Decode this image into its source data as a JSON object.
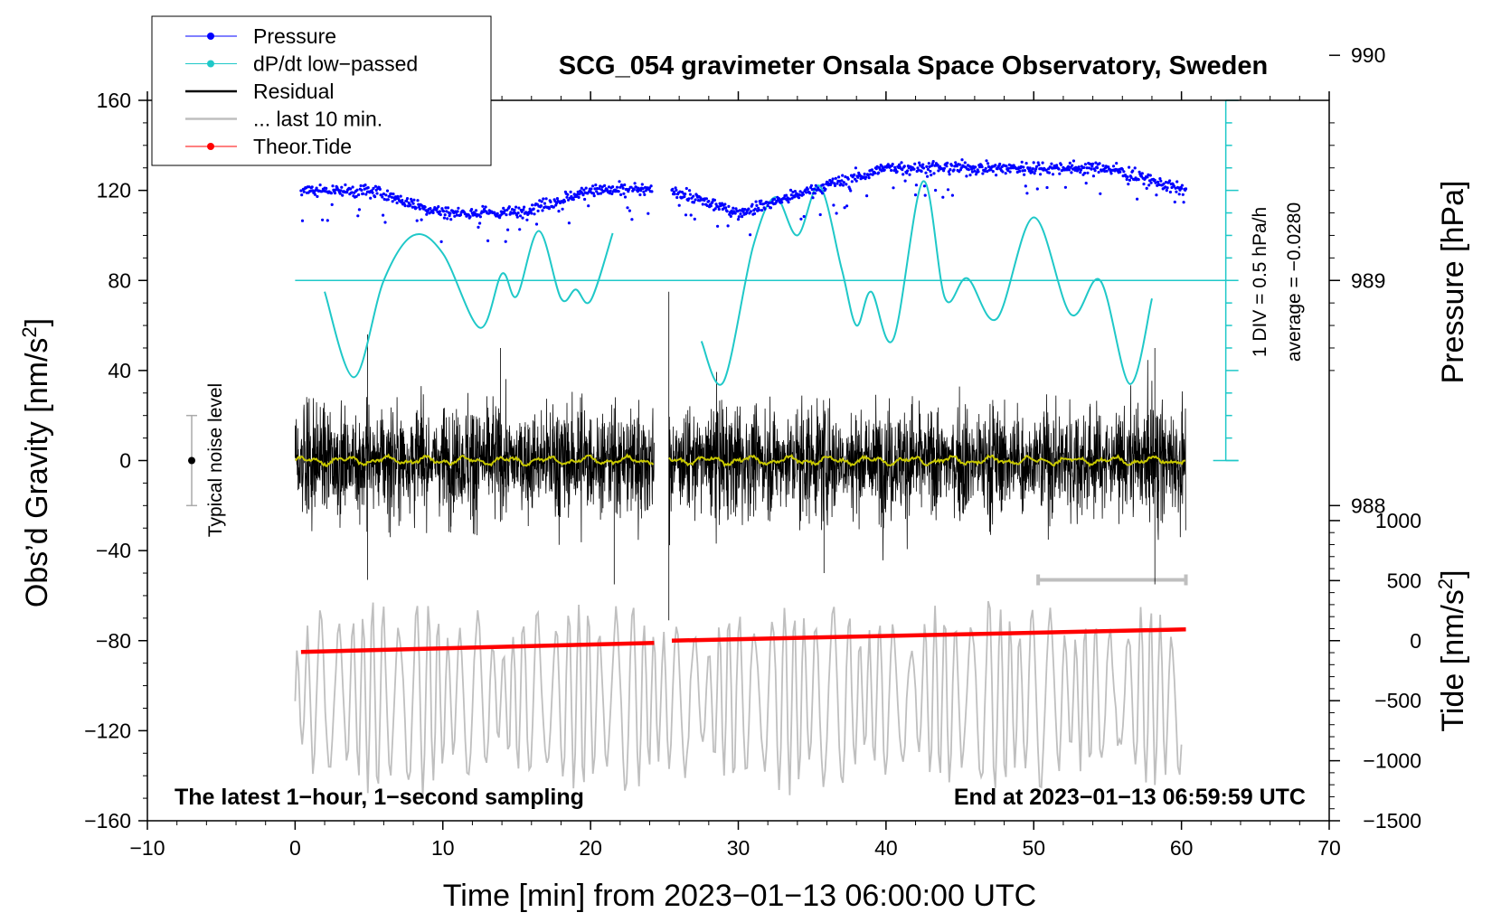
{
  "chart_data": {
    "type": "line",
    "title": "SCG_054 gravimeter Onsala Space Observatory, Sweden",
    "xlabel": "Time [min] from 2023−01−13 06:00:00 UTC",
    "ylabel_main": "Obs’d Gravity [nm/s",
    "ylabel_main_sup": "2",
    "ylabel_main_end": "]",
    "ylabel_pressure": "Pressure [hPa]",
    "ylabel_tide": "Tide [nm/s",
    "ylabel_tide_sup": "2",
    "ylabel_tide_end": "]",
    "xlim": [
      -10,
      70
    ],
    "ylim": [
      -160,
      160
    ],
    "xticks": [
      -10,
      0,
      10,
      20,
      30,
      40,
      50,
      60,
      70
    ],
    "xtick_labels": [
      "−10",
      "0",
      "10",
      "20",
      "30",
      "40",
      "50",
      "60",
      "70"
    ],
    "yticks": [
      160,
      120,
      80,
      40,
      0,
      -40,
      -80,
      -120,
      -160
    ],
    "ytick_labels": [
      "160",
      "120",
      "80",
      "40",
      "0",
      "−40",
      "−80",
      "−120",
      "−160"
    ],
    "pressure_ticks": [
      990,
      989,
      988
    ],
    "pressure_tick_labels": [
      "990",
      "989",
      "988"
    ],
    "tide_ticks": [
      1000,
      500,
      0,
      -500,
      -1000,
      -1500
    ],
    "tide_tick_labels": [
      "1000",
      "500",
      "0",
      "−500",
      "−1000",
      "−1500"
    ],
    "legend": [
      {
        "label": "Pressure",
        "color": "#0000ff",
        "marker": true
      },
      {
        "label": "dP/dt low−passed",
        "color": "#1fc8c8",
        "marker": true
      },
      {
        "label": "Residual",
        "color": "#000000",
        "marker": false
      },
      {
        "label": "... last 10 min.",
        "color": "#bfbfbf",
        "marker": false
      },
      {
        "label": "Theor.Tide",
        "color": "#ff0000",
        "marker": true
      }
    ],
    "noise_label": "Typical noise level",
    "noise_range": [
      -20,
      20
    ],
    "noise_x": -7,
    "dpdt_scale_label": "1 DIV = 0.5 hPa/h",
    "dpdt_average_label": "average = −0.0280",
    "dpdt_zero_level": 80,
    "footer_left": "The latest 1−hour, 1−second sampling",
    "footer_right": "End at 2023−01−13 06:59:59 UTC",
    "series": [
      {
        "name": "Pressure",
        "unit": "hPa",
        "x": [
          0.4,
          5,
          10,
          15,
          20,
          24.2,
          25.5,
          30,
          35,
          40,
          45,
          50,
          55,
          60.3
        ],
        "values": [
          989.4,
          989.4,
          989.3,
          989.3,
          989.4,
          989.4,
          989.4,
          989.3,
          989.4,
          989.5,
          989.5,
          989.5,
          989.5,
          989.4
        ]
      },
      {
        "name": "dP/dt low−passed",
        "unit": "y",
        "x": [
          2,
          4,
          6,
          8,
          10,
          12.5,
          14,
          15,
          16.5,
          18,
          19,
          20,
          21.5,
          27.5,
          29,
          31,
          32.5,
          34,
          35.5,
          37,
          38,
          39,
          40.5,
          42.5,
          44,
          45.5,
          47.5,
          50,
          52.5,
          54.5,
          56.5,
          58
        ],
        "values": [
          75,
          37,
          80,
          100,
          92,
          59,
          83,
          73,
          102,
          72,
          76,
          71,
          101,
          53,
          35,
          95,
          117,
          100,
          122,
          85,
          60,
          75,
          54,
          124,
          72,
          81,
          63,
          108,
          65,
          80,
          34,
          72
        ]
      },
      {
        "name": "Residual",
        "unit": "nm/s2",
        "x": [
          0,
          24.3,
          25.3,
          60.3
        ],
        "values": [
          0,
          0,
          0,
          0
        ],
        "envelope_max": [
          56,
          75
        ],
        "envelope_min": [
          -53,
          -71
        ]
      },
      {
        "name": "... last 10 min.",
        "unit": "nm/s2",
        "x": [
          0,
          60
        ],
        "values": [
          -105,
          -105
        ],
        "envelope_max": [
          -50,
          -50
        ],
        "envelope_min": [
          -158,
          -158
        ]
      },
      {
        "name": "Theor.Tide",
        "unit": "nm/s2",
        "x": [
          0.4,
          24.3,
          25.5,
          60.3
        ],
        "values": [
          -85,
          -81,
          -80,
          -75
        ]
      }
    ],
    "last10_bar_x": [
      50.3,
      60.3
    ],
    "last10_bar_y": -53
  }
}
